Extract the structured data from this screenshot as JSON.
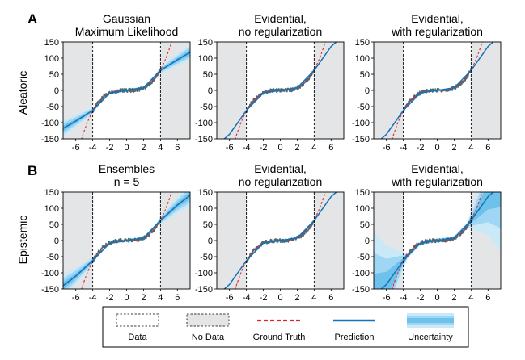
{
  "figure": {
    "rows": [
      {
        "panel_letter": "A",
        "row_label": "Aleatoric"
      },
      {
        "panel_letter": "B",
        "row_label": "Epistemic"
      }
    ]
  },
  "legend": {
    "items": [
      {
        "label": "Data",
        "swatch": "data-box"
      },
      {
        "label": "No Data",
        "swatch": "nodata-box"
      },
      {
        "label": "Ground Truth",
        "swatch": "dashed-red-line"
      },
      {
        "label": "Prediction",
        "swatch": "solid-blue-line"
      },
      {
        "label": "Uncertainty",
        "swatch": "blue-band"
      }
    ]
  },
  "colors": {
    "ground_truth": "#e0262b",
    "prediction": "#1273b9",
    "data_points": "#4a6d78",
    "uncertainty": [
      "#c9e8f8",
      "#9fd6f3",
      "#6ec1ea"
    ],
    "nodata_fill": "#e4e5e7"
  },
  "chart_data": [
    {
      "type": "line",
      "title": [
        "Gaussian",
        "Maximum Likelihood"
      ],
      "uncertainty": "aleatoric",
      "method": "gaussian",
      "xlim": [
        -7.5,
        7.5
      ],
      "ylim": [
        -150,
        150
      ],
      "xticks": [
        -6,
        -4,
        -2,
        0,
        2,
        4,
        6
      ],
      "yticks": [
        -150,
        -100,
        -50,
        0,
        50,
        100,
        150
      ],
      "data_region": [
        -4,
        4
      ],
      "ground_truth": "y = x^3",
      "prediction": [
        [
          -7.5,
          -118
        ],
        [
          -6,
          -95
        ],
        [
          -4,
          -62
        ],
        [
          -2,
          -8
        ],
        [
          0,
          0
        ],
        [
          2,
          8
        ],
        [
          4,
          62
        ],
        [
          6,
          95
        ],
        [
          7.5,
          118
        ]
      ],
      "uncertainty_half_width": [
        [
          -7.5,
          25
        ],
        [
          -4,
          10
        ],
        [
          -3.5,
          4
        ],
        [
          3.5,
          4
        ],
        [
          4,
          10
        ],
        [
          7.5,
          25
        ]
      ]
    },
    {
      "type": "line",
      "title": [
        "Evidential,",
        "no regularization"
      ],
      "uncertainty": "aleatoric",
      "method": "evidential",
      "xlim": [
        -7.5,
        7.5
      ],
      "ylim": [
        -150,
        150
      ],
      "xticks": [
        -6,
        -4,
        -2,
        0,
        2,
        4,
        6
      ],
      "yticks": [
        -150,
        -100,
        -50,
        0,
        50,
        100,
        150
      ],
      "data_region": [
        -4,
        4
      ],
      "ground_truth": "y = x^3",
      "prediction": [
        [
          -7.5,
          -170
        ],
        [
          -6,
          -136
        ],
        [
          -4,
          -62
        ],
        [
          -2,
          -8
        ],
        [
          0,
          0
        ],
        [
          2,
          8
        ],
        [
          4,
          62
        ],
        [
          6,
          136
        ],
        [
          7.5,
          170
        ]
      ],
      "uncertainty_half_width": [
        [
          -7.5,
          2
        ],
        [
          7.5,
          2
        ]
      ]
    },
    {
      "type": "line",
      "title": [
        "Evidential,",
        "with regularization"
      ],
      "uncertainty": "aleatoric",
      "method": "evidential",
      "xlim": [
        -7.5,
        7.5
      ],
      "ylim": [
        -150,
        150
      ],
      "xticks": [
        -6,
        -4,
        -2,
        0,
        2,
        4,
        6
      ],
      "yticks": [
        -150,
        -100,
        -50,
        0,
        50,
        100,
        150
      ],
      "data_region": [
        -4,
        4
      ],
      "ground_truth": "y = x^3",
      "prediction": [
        [
          -7.5,
          -170
        ],
        [
          -6,
          -136
        ],
        [
          -4,
          -62
        ],
        [
          -2,
          -8
        ],
        [
          0,
          0
        ],
        [
          2,
          8
        ],
        [
          4,
          62
        ],
        [
          6,
          136
        ],
        [
          7.5,
          170
        ]
      ],
      "uncertainty_half_width": [
        [
          -7.5,
          2
        ],
        [
          7.5,
          2
        ]
      ]
    },
    {
      "type": "line",
      "title": [
        "Ensembles",
        "n = 5"
      ],
      "uncertainty": "epistemic",
      "method": "ensemble",
      "xlim": [
        -7.5,
        7.5
      ],
      "ylim": [
        -150,
        150
      ],
      "xticks": [
        -6,
        -4,
        -2,
        0,
        2,
        4,
        6
      ],
      "yticks": [
        -150,
        -100,
        -50,
        0,
        50,
        100,
        150
      ],
      "data_region": [
        -4,
        4
      ],
      "ground_truth": "y = x^3",
      "prediction": [
        [
          -7.5,
          -140
        ],
        [
          -6,
          -110
        ],
        [
          -4,
          -62
        ],
        [
          -2,
          -8
        ],
        [
          0,
          0
        ],
        [
          2,
          8
        ],
        [
          4,
          62
        ],
        [
          6,
          110
        ],
        [
          7.5,
          140
        ]
      ],
      "uncertainty_half_width": [
        [
          -7.5,
          35
        ],
        [
          -4,
          12
        ],
        [
          -3.5,
          4
        ],
        [
          3.5,
          4
        ],
        [
          4,
          12
        ],
        [
          7.5,
          35
        ]
      ]
    },
    {
      "type": "line",
      "title": [
        "Evidential,",
        "no regularization"
      ],
      "uncertainty": "epistemic",
      "method": "evidential",
      "xlim": [
        -7.5,
        7.5
      ],
      "ylim": [
        -150,
        150
      ],
      "xticks": [
        -6,
        -4,
        -2,
        0,
        2,
        4,
        6
      ],
      "yticks": [
        -150,
        -100,
        -50,
        0,
        50,
        100,
        150
      ],
      "data_region": [
        -4,
        4
      ],
      "ground_truth": "y = x^3",
      "prediction": [
        [
          -7.5,
          -170
        ],
        [
          -6,
          -136
        ],
        [
          -4,
          -62
        ],
        [
          -2,
          -8
        ],
        [
          0,
          0
        ],
        [
          2,
          8
        ],
        [
          4,
          62
        ],
        [
          6,
          136
        ],
        [
          7.5,
          170
        ]
      ],
      "uncertainty_half_width": [
        [
          -7.5,
          2
        ],
        [
          7.5,
          2
        ]
      ]
    },
    {
      "type": "line",
      "title": [
        "Evidential,",
        "with regularization"
      ],
      "uncertainty": "epistemic",
      "method": "evidential",
      "xlim": [
        -7.5,
        7.5
      ],
      "ylim": [
        -150,
        150
      ],
      "xticks": [
        -6,
        -4,
        -2,
        0,
        2,
        4,
        6
      ],
      "yticks": [
        -150,
        -100,
        -50,
        0,
        50,
        100,
        150
      ],
      "data_region": [
        -4,
        4
      ],
      "ground_truth": "y = x^3",
      "prediction": [
        [
          -7.5,
          -170
        ],
        [
          -6,
          -136
        ],
        [
          -4,
          -62
        ],
        [
          -2,
          -8
        ],
        [
          0,
          0
        ],
        [
          2,
          8
        ],
        [
          4,
          62
        ],
        [
          6,
          136
        ],
        [
          7.5,
          170
        ]
      ],
      "uncertainty_half_width": [
        [
          -7.5,
          200
        ],
        [
          -6,
          120
        ],
        [
          -4,
          25
        ],
        [
          -3.5,
          6
        ],
        [
          3.5,
          6
        ],
        [
          4,
          25
        ],
        [
          6,
          120
        ],
        [
          7.5,
          200
        ]
      ]
    }
  ]
}
